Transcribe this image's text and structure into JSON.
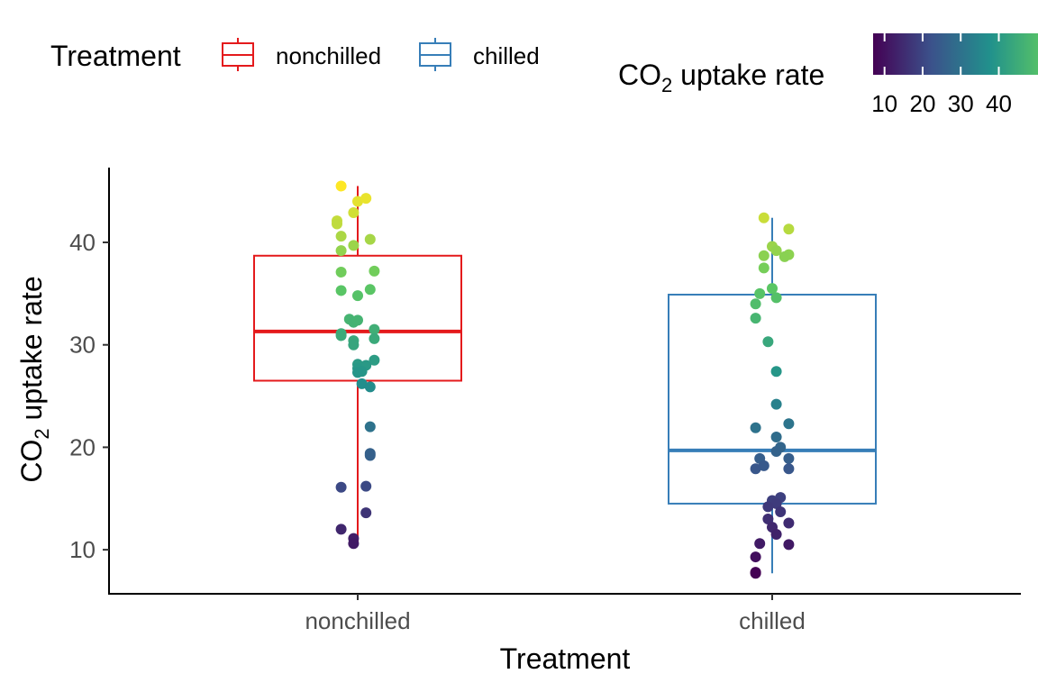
{
  "chart_data": {
    "type": "box",
    "xlabel": "Treatment",
    "ylabel_main": "CO",
    "ylabel_sub": "2",
    "ylabel_rest": " uptake rate",
    "ylim": [
      5.7,
      47.3
    ],
    "yticks": [
      10,
      20,
      30,
      40
    ],
    "categories": [
      "nonchilled",
      "chilled"
    ],
    "legend": {
      "fill_title": "Treatment",
      "color_title_main": "CO",
      "color_title_sub": "2",
      "color_title_rest": " uptake rate",
      "color_ticks": [
        10,
        20,
        30,
        40
      ],
      "color_range": [
        7.7,
        45.5
      ],
      "placement": "top"
    },
    "series": [
      {
        "name": "nonchilled",
        "color": "#e41a1c",
        "box": {
          "q1": 26.5,
          "median": 31.3,
          "q3": 38.7,
          "whisker_low": 10.6,
          "whisker_high": 45.5
        },
        "points": [
          {
            "dx": -0.04,
            "y": 45.5
          },
          {
            "dx": 0.0,
            "y": 44.0
          },
          {
            "dx": 0.02,
            "y": 44.3
          },
          {
            "dx": -0.01,
            "y": 42.9
          },
          {
            "dx": -0.05,
            "y": 42.1
          },
          {
            "dx": -0.05,
            "y": 41.8
          },
          {
            "dx": -0.04,
            "y": 40.6
          },
          {
            "dx": 0.03,
            "y": 40.3
          },
          {
            "dx": -0.01,
            "y": 39.7
          },
          {
            "dx": -0.04,
            "y": 39.2
          },
          {
            "dx": -0.04,
            "y": 37.1
          },
          {
            "dx": 0.04,
            "y": 37.2
          },
          {
            "dx": -0.04,
            "y": 35.3
          },
          {
            "dx": 0.03,
            "y": 35.4
          },
          {
            "dx": 0.0,
            "y": 34.8
          },
          {
            "dx": -0.02,
            "y": 32.5
          },
          {
            "dx": -0.01,
            "y": 32.2
          },
          {
            "dx": 0.0,
            "y": 32.4
          },
          {
            "dx": 0.04,
            "y": 31.5
          },
          {
            "dx": -0.04,
            "y": 31.1
          },
          {
            "dx": -0.04,
            "y": 30.9
          },
          {
            "dx": 0.04,
            "y": 30.6
          },
          {
            "dx": -0.01,
            "y": 30.4
          },
          {
            "dx": -0.01,
            "y": 30.0
          },
          {
            "dx": 0.04,
            "y": 28.5
          },
          {
            "dx": 0.0,
            "y": 28.1
          },
          {
            "dx": 0.02,
            "y": 28.0
          },
          {
            "dx": 0.0,
            "y": 27.7
          },
          {
            "dx": 0.01,
            "y": 27.4
          },
          {
            "dx": 0.0,
            "y": 27.3
          },
          {
            "dx": 0.01,
            "y": 26.2
          },
          {
            "dx": 0.03,
            "y": 25.9
          },
          {
            "dx": 0.03,
            "y": 22.0
          },
          {
            "dx": 0.03,
            "y": 19.4
          },
          {
            "dx": 0.03,
            "y": 19.2
          },
          {
            "dx": -0.04,
            "y": 16.1
          },
          {
            "dx": 0.02,
            "y": 16.2
          },
          {
            "dx": 0.02,
            "y": 13.6
          },
          {
            "dx": -0.04,
            "y": 12.0
          },
          {
            "dx": -0.01,
            "y": 11.1
          },
          {
            "dx": -0.01,
            "y": 10.6
          }
        ]
      },
      {
        "name": "chilled",
        "color": "#377eb8",
        "box": {
          "q1": 14.5,
          "median": 19.7,
          "q3": 34.9,
          "whisker_low": 7.7,
          "whisker_high": 42.4
        },
        "points": [
          {
            "dx": -0.02,
            "y": 42.4
          },
          {
            "dx": 0.04,
            "y": 41.3
          },
          {
            "dx": 0.0,
            "y": 39.6
          },
          {
            "dx": 0.01,
            "y": 39.2
          },
          {
            "dx": -0.02,
            "y": 38.7
          },
          {
            "dx": 0.04,
            "y": 38.8
          },
          {
            "dx": 0.03,
            "y": 38.6
          },
          {
            "dx": -0.02,
            "y": 37.5
          },
          {
            "dx": 0.0,
            "y": 35.5
          },
          {
            "dx": -0.03,
            "y": 35.0
          },
          {
            "dx": 0.01,
            "y": 34.6
          },
          {
            "dx": -0.04,
            "y": 34.0
          },
          {
            "dx": -0.04,
            "y": 32.6
          },
          {
            "dx": -0.01,
            "y": 30.3
          },
          {
            "dx": 0.01,
            "y": 27.4
          },
          {
            "dx": 0.01,
            "y": 24.2
          },
          {
            "dx": 0.04,
            "y": 22.3
          },
          {
            "dx": -0.04,
            "y": 21.9
          },
          {
            "dx": 0.01,
            "y": 21.0
          },
          {
            "dx": 0.02,
            "y": 20.0
          },
          {
            "dx": 0.01,
            "y": 19.6
          },
          {
            "dx": -0.03,
            "y": 18.9
          },
          {
            "dx": 0.04,
            "y": 18.9
          },
          {
            "dx": -0.02,
            "y": 18.2
          },
          {
            "dx": -0.04,
            "y": 17.9
          },
          {
            "dx": 0.04,
            "y": 17.9
          },
          {
            "dx": 0.02,
            "y": 15.1
          },
          {
            "dx": 0.0,
            "y": 14.8
          },
          {
            "dx": 0.01,
            "y": 14.5
          },
          {
            "dx": -0.01,
            "y": 14.2
          },
          {
            "dx": 0.02,
            "y": 13.7
          },
          {
            "dx": -0.01,
            "y": 13.0
          },
          {
            "dx": 0.04,
            "y": 12.6
          },
          {
            "dx": 0.0,
            "y": 12.2
          },
          {
            "dx": 0.01,
            "y": 11.5
          },
          {
            "dx": -0.03,
            "y": 10.6
          },
          {
            "dx": 0.04,
            "y": 10.5
          },
          {
            "dx": -0.04,
            "y": 9.3
          },
          {
            "dx": -0.04,
            "y": 7.8
          },
          {
            "dx": -0.04,
            "y": 7.7
          }
        ]
      }
    ],
    "grid": false
  }
}
